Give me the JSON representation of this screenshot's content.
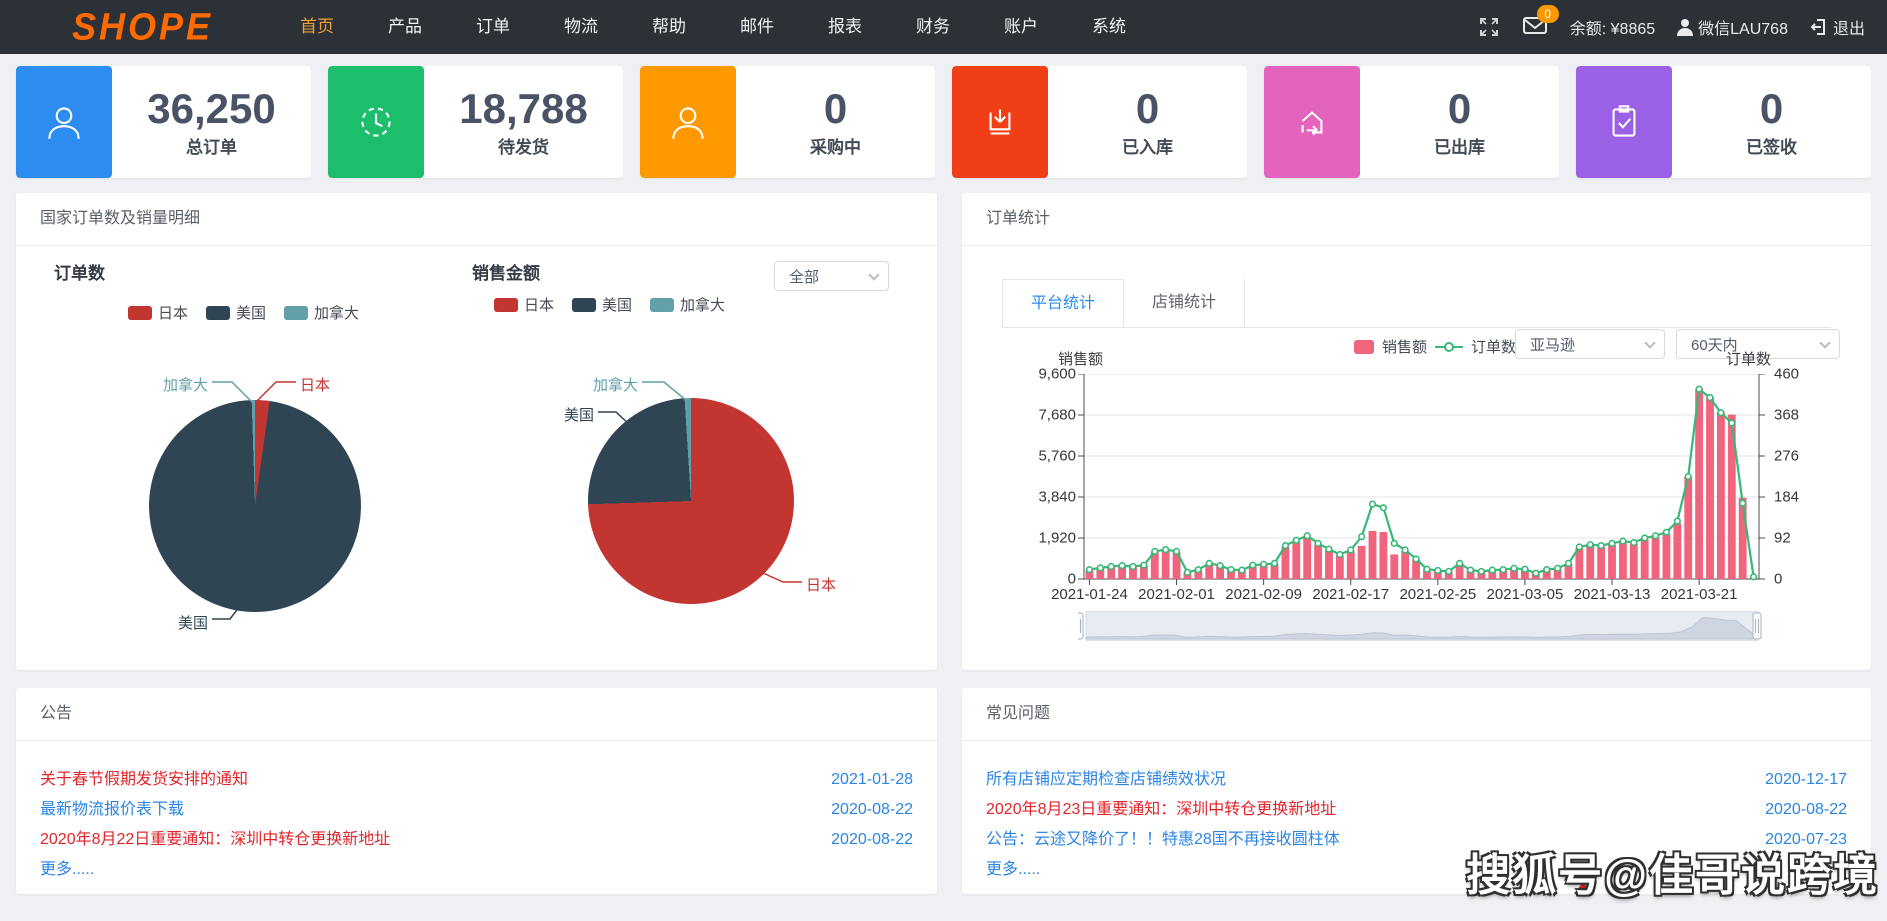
{
  "navbar": {
    "logo": "SHOPE",
    "items": [
      {
        "label": "首页"
      },
      {
        "label": "产品"
      },
      {
        "label": "订单"
      },
      {
        "label": "物流"
      },
      {
        "label": "帮助"
      },
      {
        "label": "邮件"
      },
      {
        "label": "报表"
      },
      {
        "label": "财务"
      },
      {
        "label": "账户"
      },
      {
        "label": "系统"
      }
    ],
    "mail_badge": "0",
    "balance_label": "余额: ¥8865",
    "user_label": "微信LAU768",
    "logout_label": "退出"
  },
  "stats": [
    {
      "value": "36,250",
      "label": "总订单",
      "color": "#2d8cf0",
      "icon": "user-icon"
    },
    {
      "value": "18,788",
      "label": "待发货",
      "color": "#1cbe6b",
      "icon": "clock-icon"
    },
    {
      "value": "0",
      "label": "采购中",
      "color": "#ff9900",
      "icon": "user-icon"
    },
    {
      "value": "0",
      "label": "已入库",
      "color": "#f03f17",
      "icon": "inbox-in-icon"
    },
    {
      "value": "0",
      "label": "已出库",
      "color": "#e463bd",
      "icon": "home-out-icon"
    },
    {
      "value": "0",
      "label": "已签收",
      "color": "#9a60e6",
      "icon": "clipboard-check-icon"
    }
  ],
  "country_panel": {
    "title": "国家订单数及销量明细",
    "orders_title": "订单数",
    "sales_title": "销售金额",
    "filter_value": "全部",
    "legend": [
      {
        "label": "日本",
        "color": "#c23531"
      },
      {
        "label": "美国",
        "color": "#2f4554"
      },
      {
        "label": "加拿大",
        "color": "#61a0a8"
      }
    ]
  },
  "order_panel": {
    "title": "订单统计",
    "tab_platform": "平台统计",
    "tab_shop": "店铺统计",
    "legend_sales": "销售额",
    "legend_orders": "订单数",
    "platform_filter": "亚马逊",
    "range_filter": "60天内"
  },
  "announcements": {
    "title": "公告",
    "items": [
      {
        "text": "关于春节假期发货安排的通知",
        "date": "2021-01-28"
      },
      {
        "text": "最新物流报价表下载",
        "date": "2020-08-22"
      },
      {
        "text": "2020年8月22日重要通知：深圳中转仓更换新地址",
        "date": "2020-08-22"
      }
    ],
    "more": "更多....."
  },
  "faq": {
    "title": "常见问题",
    "items": [
      {
        "text": "所有店铺应定期检查店铺绩效状况",
        "date": "2020-12-17"
      },
      {
        "text": "2020年8月23日重要通知：深圳中转仓更换新地址",
        "date": "2020-08-22"
      },
      {
        "text": "公告：云途又降价了！！特惠28国不再接收圆柱体",
        "date": "2020-07-23"
      }
    ],
    "more": "更多....."
  },
  "watermark": "搜狐号@佳哥说跨境",
  "chart_data": [
    {
      "type": "pie",
      "title": "订单数",
      "labels": [
        "日本",
        "美国",
        "加拿大"
      ],
      "values_pct": [
        2.2,
        97.3,
        0.5
      ],
      "colors": [
        "#c23531",
        "#2f4554",
        "#61a0a8"
      ],
      "legend_position": "top"
    },
    {
      "type": "pie",
      "title": "销售金额",
      "labels": [
        "日本",
        "美国",
        "加拿大"
      ],
      "values_pct": [
        74.5,
        24.5,
        1.0
      ],
      "colors": [
        "#c23531",
        "#2f4554",
        "#61a0a8"
      ],
      "legend_position": "top"
    },
    {
      "type": "bar",
      "title": "订单统计 平台统计 亚马逊 60天内",
      "x_start": "2021-01-24",
      "x_tick_labels": [
        "2021-01-24",
        "2021-02-01",
        "2021-02-09",
        "2021-02-17",
        "2021-02-25",
        "2021-03-05",
        "2021-03-13",
        "2021-03-21"
      ],
      "x_tick_indices": [
        0,
        8,
        16,
        24,
        32,
        40,
        48,
        56
      ],
      "grid": true,
      "series": [
        {
          "name": "销售额",
          "type": "bar",
          "axis": "left",
          "color": "#f1647e",
          "values": [
            420,
            500,
            560,
            600,
            560,
            620,
            1250,
            1320,
            1250,
            300,
            430,
            700,
            600,
            430,
            400,
            620,
            660,
            700,
            1500,
            1750,
            1950,
            1600,
            1350,
            1100,
            1300,
            1550,
            2250,
            2200,
            1150,
            1300,
            900,
            450,
            380,
            350,
            700,
            400,
            350,
            400,
            430,
            480,
            450,
            260,
            420,
            480,
            700,
            1450,
            1550,
            1500,
            1600,
            1700,
            1650,
            1850,
            1950,
            2100,
            2600,
            4800,
            8900,
            8500,
            7800,
            7700,
            3800,
            60
          ]
        },
        {
          "name": "订单数",
          "type": "line",
          "axis": "right",
          "color": "#38b877",
          "values": [
            21,
            25,
            28,
            30,
            28,
            31,
            62,
            66,
            62,
            15,
            21,
            35,
            30,
            21,
            20,
            31,
            33,
            35,
            75,
            87,
            97,
            80,
            67,
            55,
            65,
            95,
            168,
            160,
            80,
            65,
            45,
            22,
            19,
            17,
            35,
            20,
            17,
            20,
            21,
            24,
            22,
            13,
            21,
            24,
            35,
            72,
            77,
            75,
            80,
            85,
            82,
            92,
            97,
            105,
            130,
            230,
            426,
            407,
            373,
            350,
            170,
            5
          ]
        }
      ],
      "y_left": {
        "title": "销售额",
        "min": 0,
        "max": 9600,
        "ticks": [
          "9,600",
          "7,680",
          "5,760",
          "3,840",
          "1,920",
          "0"
        ]
      },
      "y_right": {
        "title": "订单数",
        "min": 0,
        "max": 460,
        "ticks": [
          "460",
          "368",
          "276",
          "184",
          "92",
          "0"
        ]
      }
    }
  ]
}
